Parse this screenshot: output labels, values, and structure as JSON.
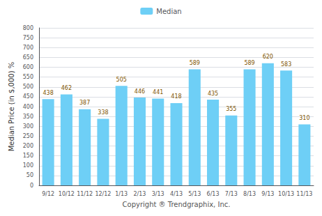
{
  "chart_data": {
    "type": "bar",
    "categories": [
      "9/12",
      "10/12",
      "11/12",
      "12/12",
      "1/13",
      "2/13",
      "3/13",
      "4/13",
      "5/13",
      "6/13",
      "7/13",
      "8/13",
      "9/13",
      "10/13",
      "11/13"
    ],
    "series": [
      {
        "name": "Median",
        "color": "#6ecff6",
        "values": [
          438,
          462,
          387,
          338,
          505,
          446,
          441,
          418,
          589,
          435,
          355,
          589,
          620,
          583,
          310
        ]
      }
    ],
    "xlabel": "Copyright ® Trendgraphix, Inc.",
    "ylabel": "Median Price (in $,000) %",
    "ylim": [
      0,
      800
    ],
    "yticks": [
      0,
      50,
      100,
      150,
      200,
      250,
      300,
      350,
      400,
      450,
      500,
      550,
      600,
      650,
      700,
      750,
      800
    ],
    "grid": true,
    "legend": "top",
    "data_labels": true
  }
}
